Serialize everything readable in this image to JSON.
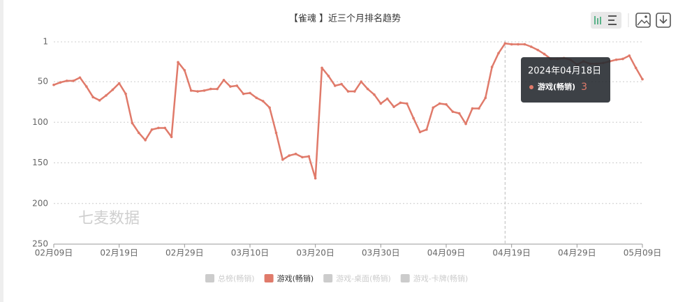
{
  "chart_data": {
    "type": "line",
    "title": "【雀魂 】近三个月排名趋势",
    "watermark": "七麦数据",
    "categories": [
      "02月09日",
      null,
      null,
      null,
      null,
      null,
      null,
      null,
      null,
      null,
      "02月19日",
      null,
      null,
      null,
      null,
      null,
      null,
      null,
      null,
      null,
      "02月29日",
      null,
      null,
      null,
      null,
      null,
      null,
      null,
      null,
      null,
      "03月10日",
      null,
      null,
      null,
      null,
      null,
      null,
      null,
      null,
      null,
      "03月20日",
      null,
      null,
      null,
      null,
      null,
      null,
      null,
      null,
      null,
      "03月30日",
      null,
      null,
      null,
      null,
      null,
      null,
      null,
      null,
      null,
      "04月09日",
      null,
      null,
      null,
      null,
      null,
      null,
      null,
      null,
      null,
      "04月19日",
      null,
      null,
      null,
      null,
      null,
      null,
      null,
      null,
      null,
      "04月29日",
      null,
      null,
      null,
      null,
      null,
      null,
      null,
      null,
      null,
      "05月09日"
    ],
    "series": [
      {
        "name": "总榜(畅销)",
        "visible": false
      },
      {
        "name": "游戏(畅销)",
        "color": "#e07a6a",
        "visible": true,
        "values": [
          54,
          51,
          49,
          49,
          45,
          56,
          69,
          73,
          67,
          60,
          52,
          65,
          101,
          113,
          122,
          109,
          107,
          107,
          118,
          26,
          36,
          61,
          62,
          61,
          59,
          59,
          48,
          56,
          55,
          65,
          64,
          70,
          74,
          82,
          113,
          146,
          141,
          139,
          143,
          142,
          169,
          33,
          43,
          55,
          53,
          62,
          62,
          50,
          59,
          66,
          77,
          71,
          81,
          76,
          77,
          95,
          112,
          109,
          82,
          77,
          78,
          87,
          89,
          102,
          83,
          83,
          70,
          32,
          15,
          3,
          4,
          4,
          4,
          7,
          11,
          16,
          22,
          22,
          21,
          23,
          29,
          25,
          28,
          28,
          27,
          25,
          23,
          22,
          18,
          33,
          47
        ]
      },
      {
        "name": "游戏-桌面(畅销)",
        "visible": false
      },
      {
        "name": "游戏-卡牌(畅销)",
        "visible": false
      }
    ],
    "ylim": [
      1,
      250
    ],
    "y_inverse": true,
    "yticks": [
      1,
      50,
      100,
      150,
      200,
      250
    ],
    "grid": true,
    "tooltip": {
      "title": "2024年04月18日"
    }
  }
}
